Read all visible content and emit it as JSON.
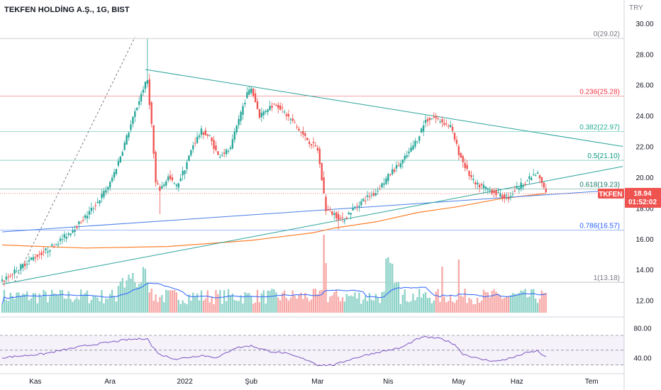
{
  "title": "TEKFEN HOLDİNG A.Ş., 1G, BIST",
  "currency": "TRY",
  "symbol_tag": "TKFEN",
  "price_tag": {
    "price": "18.94",
    "countdown": "01:52:02"
  },
  "colors": {
    "up": "#26a69a",
    "down": "#ef5350",
    "vol_up": "#8fd3c9",
    "vol_down": "#f7a9a7",
    "ma": "#ff7f2a",
    "trend_blue": "#4a7fe6",
    "trend_teal": "#2aa39a",
    "rsi": "#7e57c2",
    "vol_ma": "#2962ff"
  },
  "chart_data": [
    {
      "type": "candlestick",
      "title": "TEKFEN HOLDİNG A.Ş., 1G, BIST",
      "ylabel": "TRY",
      "ylim": [
        11.2,
        30.5
      ],
      "y_ticks": [
        "28.00",
        "26.00",
        "24.00",
        "22.00",
        "20.00",
        "16.00",
        "14.00",
        "12.00"
      ],
      "y_ticks_faded": [
        "30.00",
        "18.00"
      ],
      "x_ticks": [
        "Kas",
        "Ara",
        "2022",
        "Şub",
        "Mar",
        "Nis",
        "May",
        "Haz",
        "Tem"
      ],
      "grid": true,
      "last_close": 18.94,
      "fib_levels": [
        {
          "label": "0(29.02)",
          "ratio": 0,
          "value": 29.02,
          "color": "#787b86"
        },
        {
          "label": "0.236(25.28)",
          "ratio": 0.236,
          "value": 25.28,
          "color": "#f23645"
        },
        {
          "label": "0.382(22.97)",
          "ratio": 0.382,
          "value": 22.97,
          "color": "#22ab94"
        },
        {
          "label": "0.5(21.10)",
          "ratio": 0.5,
          "value": 21.1,
          "color": "#089981"
        },
        {
          "label": "0.618(19.23)",
          "ratio": 0.618,
          "value": 19.23,
          "color": "#1e7d6f"
        },
        {
          "label": "0.786(16.57)",
          "ratio": 0.786,
          "value": 16.57,
          "color": "#2962ff"
        },
        {
          "label": "1(13.18)",
          "ratio": 1,
          "value": 13.18,
          "color": "#787b86"
        }
      ],
      "anchors": [
        [
          0,
          13.2
        ],
        [
          6,
          13.9
        ],
        [
          14,
          14.7
        ],
        [
          22,
          15.3
        ],
        [
          28,
          15.9
        ],
        [
          34,
          16.6
        ],
        [
          40,
          17.4
        ],
        [
          46,
          18.4
        ],
        [
          52,
          19.6
        ],
        [
          56,
          21.0
        ],
        [
          60,
          22.6
        ],
        [
          64,
          24.2
        ],
        [
          68,
          25.8
        ],
        [
          70,
          26.3
        ],
        [
          72,
          23.4
        ],
        [
          74,
          19.6
        ],
        [
          76,
          19.2
        ],
        [
          80,
          20.0
        ],
        [
          84,
          19.4
        ],
        [
          88,
          20.6
        ],
        [
          92,
          22.1
        ],
        [
          96,
          23.0
        ],
        [
          100,
          22.6
        ],
        [
          104,
          21.4
        ],
        [
          110,
          21.8
        ],
        [
          114,
          23.8
        ],
        [
          118,
          25.4
        ],
        [
          120,
          25.8
        ],
        [
          124,
          24.0
        ],
        [
          128,
          24.5
        ],
        [
          132,
          24.8
        ],
        [
          136,
          24.2
        ],
        [
          140,
          23.6
        ],
        [
          144,
          22.9
        ],
        [
          148,
          22.3
        ],
        [
          152,
          21.8
        ],
        [
          156,
          17.9
        ],
        [
          160,
          17.6
        ],
        [
          164,
          17.2
        ],
        [
          168,
          17.8
        ],
        [
          172,
          18.3
        ],
        [
          176,
          18.7
        ],
        [
          180,
          19.0
        ],
        [
          184,
          19.7
        ],
        [
          188,
          20.4
        ],
        [
          192,
          20.9
        ],
        [
          196,
          21.6
        ],
        [
          200,
          22.5
        ],
        [
          204,
          23.7
        ],
        [
          208,
          23.9
        ],
        [
          212,
          23.6
        ],
        [
          216,
          23.3
        ],
        [
          220,
          21.6
        ],
        [
          224,
          20.4
        ],
        [
          228,
          19.5
        ],
        [
          232,
          19.4
        ],
        [
          236,
          19.1
        ],
        [
          240,
          18.8
        ],
        [
          244,
          18.7
        ],
        [
          248,
          19.3
        ],
        [
          252,
          19.7
        ],
        [
          256,
          20.1
        ],
        [
          258,
          20.2
        ],
        [
          260,
          19.6
        ],
        [
          262,
          18.94
        ]
      ],
      "moving_average": [
        [
          0,
          15.6
        ],
        [
          40,
          15.4
        ],
        [
          80,
          15.5
        ],
        [
          120,
          15.9
        ],
        [
          150,
          16.4
        ],
        [
          160,
          16.7
        ],
        [
          180,
          17.1
        ],
        [
          200,
          17.7
        ],
        [
          220,
          18.1
        ],
        [
          240,
          18.6
        ],
        [
          262,
          18.95
        ]
      ],
      "trendlines": [
        {
          "name": "lower-blue",
          "from": [
            0,
            16.45
          ],
          "to": [
            299,
            19.2
          ]
        },
        {
          "name": "lower-teal",
          "from": [
            0,
            13.05
          ],
          "to": [
            299,
            20.7
          ]
        },
        {
          "name": "upper-teal",
          "from": [
            69,
            27.0
          ],
          "to": [
            299,
            22.0
          ]
        },
        {
          "name": "dashed-steep",
          "from": [
            6,
            13.2
          ],
          "to": [
            64,
            29.1
          ]
        }
      ],
      "candles": 263,
      "x_tick_index": [
        16,
        52,
        88,
        120,
        152,
        186,
        220,
        248,
        284
      ]
    },
    {
      "type": "bar",
      "title": "",
      "series": [
        {
          "name": "",
          "values": []
        }
      ],
      "values_hint": "daily volume bars in price pane, heights relative",
      "moving_average": true
    },
    {
      "type": "line",
      "title": "",
      "ylim": [
        25,
        90
      ],
      "y_ticks": [
        "80.00",
        "40.00"
      ],
      "bands": [
        70,
        50,
        30
      ],
      "rsi_anchors": [
        [
          0,
          40
        ],
        [
          20,
          45
        ],
        [
          40,
          56
        ],
        [
          60,
          64
        ],
        [
          70,
          66
        ],
        [
          72,
          56
        ],
        [
          76,
          44
        ],
        [
          84,
          38
        ],
        [
          96,
          43
        ],
        [
          104,
          40
        ],
        [
          112,
          53
        ],
        [
          120,
          56
        ],
        [
          128,
          49
        ],
        [
          136,
          46
        ],
        [
          148,
          36
        ],
        [
          152,
          30
        ],
        [
          160,
          30
        ],
        [
          168,
          38
        ],
        [
          176,
          44
        ],
        [
          184,
          49
        ],
        [
          192,
          53
        ],
        [
          200,
          65
        ],
        [
          204,
          68
        ],
        [
          212,
          65
        ],
        [
          218,
          58
        ],
        [
          222,
          45
        ],
        [
          230,
          38
        ],
        [
          238,
          35
        ],
        [
          246,
          40
        ],
        [
          252,
          46
        ],
        [
          258,
          49
        ],
        [
          262,
          40
        ]
      ]
    }
  ]
}
